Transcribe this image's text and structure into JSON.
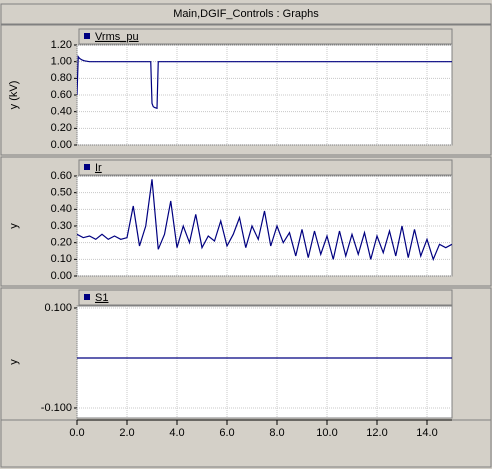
{
  "window_title": "Main,DGIF_Controls : Graphs",
  "chart_data": [
    {
      "type": "line",
      "ylabel": "y (kV)",
      "x": [
        0,
        0.05,
        0.1,
        0.2,
        0.3,
        0.5,
        1,
        2,
        2.95,
        3.0,
        3.05,
        3.1,
        3.2,
        3.25,
        3.3,
        4,
        6,
        8,
        10,
        12,
        14,
        15
      ],
      "series": [
        {
          "name": "Vrms_pu",
          "color": "#000080",
          "values": [
            0.6,
            1.06,
            1.04,
            1.02,
            1.01,
            1.0,
            1.0,
            1.0,
            1.0,
            0.5,
            0.46,
            0.45,
            0.44,
            1.0,
            1.0,
            1.0,
            1.0,
            1.0,
            1.0,
            1.0,
            1.0,
            1.0
          ]
        }
      ],
      "xlim": [
        0,
        15
      ],
      "ylim": [
        0,
        1.2
      ],
      "yticks": [
        {
          "value": 0,
          "label": "0.00"
        },
        {
          "value": 0.2,
          "label": "0.20"
        },
        {
          "value": 0.4,
          "label": "0.40"
        },
        {
          "value": 0.6,
          "label": "0.60"
        },
        {
          "value": 0.8,
          "label": "0.80"
        },
        {
          "value": 1.0,
          "label": "1.00"
        },
        {
          "value": 1.2,
          "label": "1.20"
        }
      ],
      "grid": true
    },
    {
      "type": "line",
      "ylabel": "y",
      "x": [
        0,
        0.25,
        0.5,
        0.75,
        1,
        1.25,
        1.5,
        1.75,
        2,
        2.25,
        2.5,
        2.75,
        3,
        3.25,
        3.5,
        3.75,
        4,
        4.25,
        4.5,
        4.75,
        5,
        5.25,
        5.5,
        5.75,
        6,
        6.25,
        6.5,
        6.75,
        7,
        7.25,
        7.5,
        7.75,
        8,
        8.25,
        8.5,
        8.75,
        9,
        9.25,
        9.5,
        9.75,
        10,
        10.25,
        10.5,
        10.75,
        11,
        11.25,
        11.5,
        11.75,
        12,
        12.25,
        12.5,
        12.75,
        13,
        13.25,
        13.5,
        13.75,
        14,
        14.25,
        14.5,
        14.75,
        15
      ],
      "series": [
        {
          "name": "Ir",
          "color": "#000080",
          "values": [
            0.25,
            0.23,
            0.24,
            0.22,
            0.25,
            0.22,
            0.24,
            0.22,
            0.23,
            0.42,
            0.18,
            0.3,
            0.58,
            0.16,
            0.25,
            0.45,
            0.17,
            0.3,
            0.2,
            0.37,
            0.17,
            0.24,
            0.21,
            0.33,
            0.18,
            0.25,
            0.35,
            0.17,
            0.3,
            0.22,
            0.39,
            0.18,
            0.3,
            0.2,
            0.26,
            0.12,
            0.28,
            0.11,
            0.27,
            0.13,
            0.24,
            0.1,
            0.27,
            0.12,
            0.25,
            0.13,
            0.26,
            0.1,
            0.24,
            0.14,
            0.27,
            0.12,
            0.3,
            0.11,
            0.28,
            0.12,
            0.22,
            0.1,
            0.19,
            0.17,
            0.19
          ]
        }
      ],
      "xlim": [
        0,
        15
      ],
      "ylim": [
        0,
        0.6
      ],
      "yticks": [
        {
          "value": 0,
          "label": "0.00"
        },
        {
          "value": 0.1,
          "label": "0.10"
        },
        {
          "value": 0.2,
          "label": "0.20"
        },
        {
          "value": 0.3,
          "label": "0.30"
        },
        {
          "value": 0.4,
          "label": "0.40"
        },
        {
          "value": 0.5,
          "label": "0.50"
        },
        {
          "value": 0.6,
          "label": "0.60"
        }
      ],
      "grid": true
    },
    {
      "type": "line",
      "ylabel": "y",
      "x": [
        0,
        15
      ],
      "series": [
        {
          "name": "S1",
          "color": "#000080",
          "values": [
            0,
            0
          ]
        }
      ],
      "xlim": [
        0,
        15
      ],
      "ylim": [
        -0.12,
        0.104
      ],
      "yticks": [
        {
          "value": -0.1,
          "label": "-0.100"
        },
        {
          "value": 0.1,
          "label": "0.100"
        }
      ],
      "xticks": [
        {
          "value": 0,
          "label": "0.0"
        },
        {
          "value": 2,
          "label": "2.0"
        },
        {
          "value": 4,
          "label": "4.0"
        },
        {
          "value": 6,
          "label": "6.0"
        },
        {
          "value": 8,
          "label": "8.0"
        },
        {
          "value": 10,
          "label": "10.0"
        },
        {
          "value": 12,
          "label": "12.0"
        },
        {
          "value": 14,
          "label": "14.0"
        }
      ],
      "grid": true
    }
  ]
}
